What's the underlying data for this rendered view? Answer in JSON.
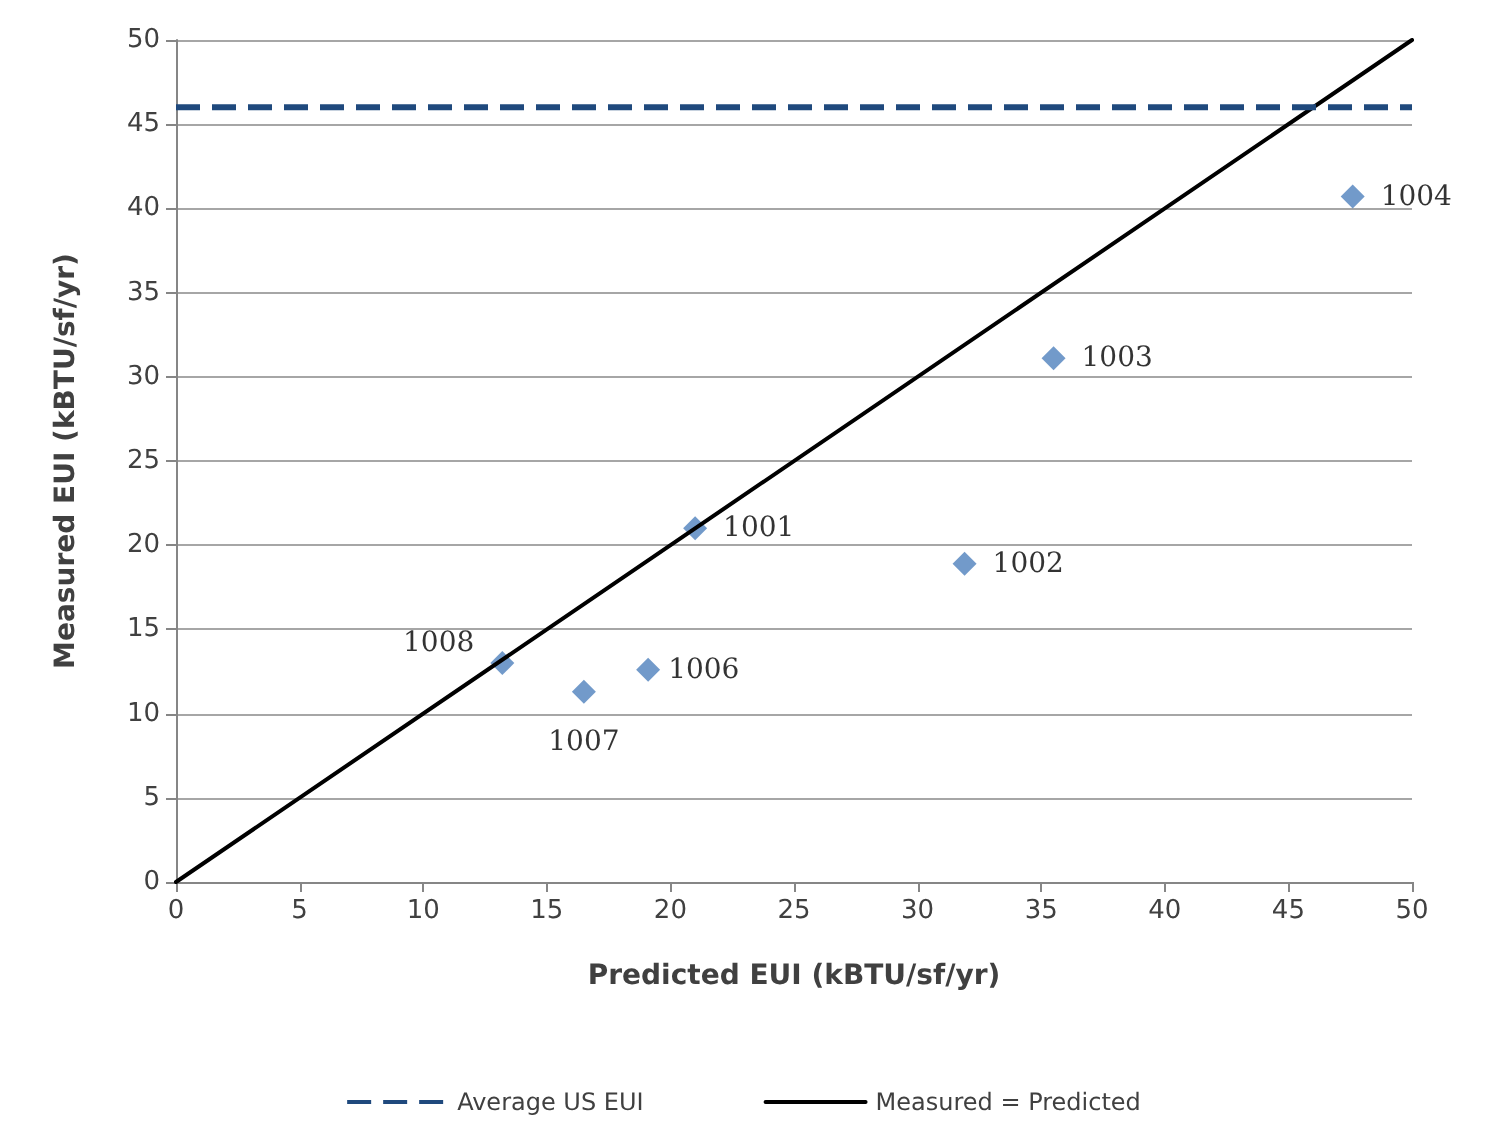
{
  "chart_data": {
    "type": "scatter",
    "xlabel": "Predicted EUI (kBTU/sf/yr)",
    "ylabel": "Measured EUI (kBTU/sf/yr)",
    "series": [
      {
        "color": "#4f81bd",
        "marker": "diamond",
        "x": [
          21.0,
          31.9,
          35.5,
          47.6,
          19.1,
          16.5,
          13.2
        ],
        "values": [
          21.0,
          18.9,
          31.1,
          40.7,
          12.6,
          11.3,
          13.0
        ]
      },
      {
        "type": "line",
        "name": "Measured = Predicted",
        "color": "#000000",
        "marker": "none",
        "line_style": "solid",
        "x": [
          0,
          50
        ],
        "values": [
          0,
          50
        ]
      }
    ],
    "ref_lines": [
      {
        "axis": "y",
        "value": 46,
        "label": "Average US EUI",
        "color": "#1f497d",
        "line_style": "dashed"
      }
    ],
    "annotations": [
      {
        "text": "1001",
        "x": 21.0,
        "y": 21.0
      },
      {
        "text": "1002",
        "x": 31.9,
        "y": 18.9
      },
      {
        "text": "1003",
        "x": 35.5,
        "y": 31.1
      },
      {
        "text": "1004",
        "x": 47.6,
        "y": 40.7
      },
      {
        "text": "1006",
        "x": 19.1,
        "y": 12.6
      },
      {
        "text": "1007",
        "x": 16.5,
        "y": 11.3
      },
      {
        "text": "1008",
        "x": 13.2,
        "y": 13.0
      }
    ],
    "xlim": [
      0,
      50
    ],
    "xticks": [
      0,
      5,
      10,
      15,
      20,
      25,
      30,
      35,
      40,
      45,
      50
    ],
    "ylim": [
      0,
      50
    ],
    "yticks": [
      0,
      5,
      10,
      15,
      20,
      25,
      30,
      35,
      40,
      45,
      50
    ],
    "grid": "y",
    "legend": "bottom"
  }
}
